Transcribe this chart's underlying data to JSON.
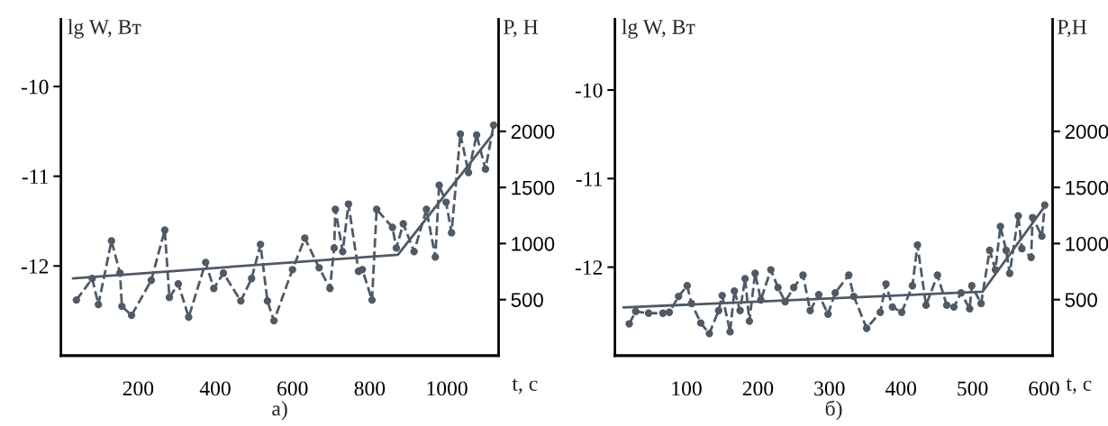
{
  "chart_data": [
    {
      "type": "line",
      "title": "а)",
      "xlabel": "t, с",
      "ylabel": "lg W, Вт",
      "y2label": "P, Н",
      "xlim": [
        0,
        1134
      ],
      "xticks": [
        200,
        400,
        600,
        800,
        1000
      ],
      "ylim": [
        -13,
        -9.25
      ],
      "yticks": [
        -10,
        -11,
        -12
      ],
      "y2lim": [
        0,
        3000
      ],
      "y2ticks": [
        500,
        1000,
        1500,
        2000
      ],
      "grid": false,
      "series": [
        {
          "color": "#4e5a66",
          "marker": "circle",
          "line_style": "dashed",
          "x": [
            40,
            81,
            97,
            131,
            153,
            158,
            183,
            234,
            269,
            281,
            304,
            331,
            375,
            396,
            421,
            466,
            494,
            517,
            535,
            552,
            600,
            632,
            669,
            697,
            708,
            711,
            730,
            745,
            771,
            781,
            806,
            818,
            859,
            869,
            887,
            915,
            947,
            970,
            980,
            998,
            1012,
            1035,
            1056,
            1077,
            1100,
            1121
          ],
          "values": [
            -12.38,
            -12.14,
            -12.43,
            -11.72,
            -12.08,
            -12.45,
            -12.55,
            -12.16,
            -11.6,
            -12.35,
            -12.2,
            -12.57,
            -11.96,
            -12.25,
            -12.08,
            -12.39,
            -12.14,
            -11.76,
            -12.39,
            -12.61,
            -12.04,
            -11.69,
            -12.02,
            -12.25,
            -11.8,
            -11.37,
            -11.84,
            -11.31,
            -12.06,
            -12.04,
            -12.38,
            -11.37,
            -11.57,
            -11.8,
            -11.53,
            -11.84,
            -11.37,
            -11.9,
            -11.1,
            -11.29,
            -11.63,
            -10.53,
            -10.96,
            -10.54,
            -10.92,
            -10.43
          ]
        },
        {
          "color": "#4e5a66",
          "marker": "none",
          "line_style": "solid",
          "axis": "y2",
          "x": [
            31,
            873,
            1118
          ],
          "values": [
            690,
            900,
            1970
          ]
        }
      ]
    },
    {
      "type": "line",
      "title": "б)",
      "xlabel": "t, с",
      "ylabel": "lg W, Вт",
      "y2label": "P,Н",
      "xlim": [
        0,
        612
      ],
      "xticks": [
        100,
        200,
        300,
        400,
        500,
        600
      ],
      "ylim": [
        -13,
        -9.2
      ],
      "yticks": [
        -10,
        -11,
        -12
      ],
      "y2lim": [
        0,
        3000
      ],
      "y2ticks": [
        500,
        1000,
        1500,
        2000
      ],
      "grid": false,
      "series": [
        {
          "color": "#4e5a66",
          "marker": "circle",
          "line_style": "dashed",
          "x": [
            20,
            29,
            47,
            67,
            76,
            89,
            101,
            107,
            120,
            132,
            145,
            150,
            161,
            167,
            175,
            182,
            188,
            196,
            204,
            218,
            228,
            238,
            250,
            263,
            273,
            285,
            298,
            308,
            327,
            334,
            352,
            371,
            379,
            388,
            401,
            416,
            423,
            435,
            451,
            464,
            474,
            484,
            496,
            499,
            512,
            524,
            532,
            539,
            547,
            552,
            564,
            569,
            582,
            584,
            597,
            601
          ],
          "values": [
            -12.64,
            -12.5,
            -12.52,
            -12.52,
            -12.51,
            -12.33,
            -12.21,
            -12.41,
            -12.63,
            -12.75,
            -12.49,
            -12.32,
            -12.73,
            -12.27,
            -12.49,
            -12.13,
            -12.61,
            -12.07,
            -12.37,
            -12.03,
            -12.23,
            -12.39,
            -12.23,
            -12.09,
            -12.49,
            -12.31,
            -12.53,
            -12.29,
            -12.09,
            -12.33,
            -12.69,
            -12.51,
            -12.19,
            -12.45,
            -12.51,
            -12.21,
            -11.75,
            -12.43,
            -12.09,
            -12.43,
            -12.45,
            -12.29,
            -12.47,
            -12.21,
            -12.41,
            -11.81,
            -12.03,
            -11.54,
            -11.81,
            -12.07,
            -11.42,
            -11.79,
            -11.89,
            -11.44,
            -11.65,
            -11.3
          ]
        },
        {
          "color": "#4e5a66",
          "marker": "none",
          "line_style": "solid",
          "axis": "y2",
          "x": [
            12,
            514,
            602
          ],
          "values": [
            430,
            570,
            1340
          ]
        }
      ]
    }
  ]
}
